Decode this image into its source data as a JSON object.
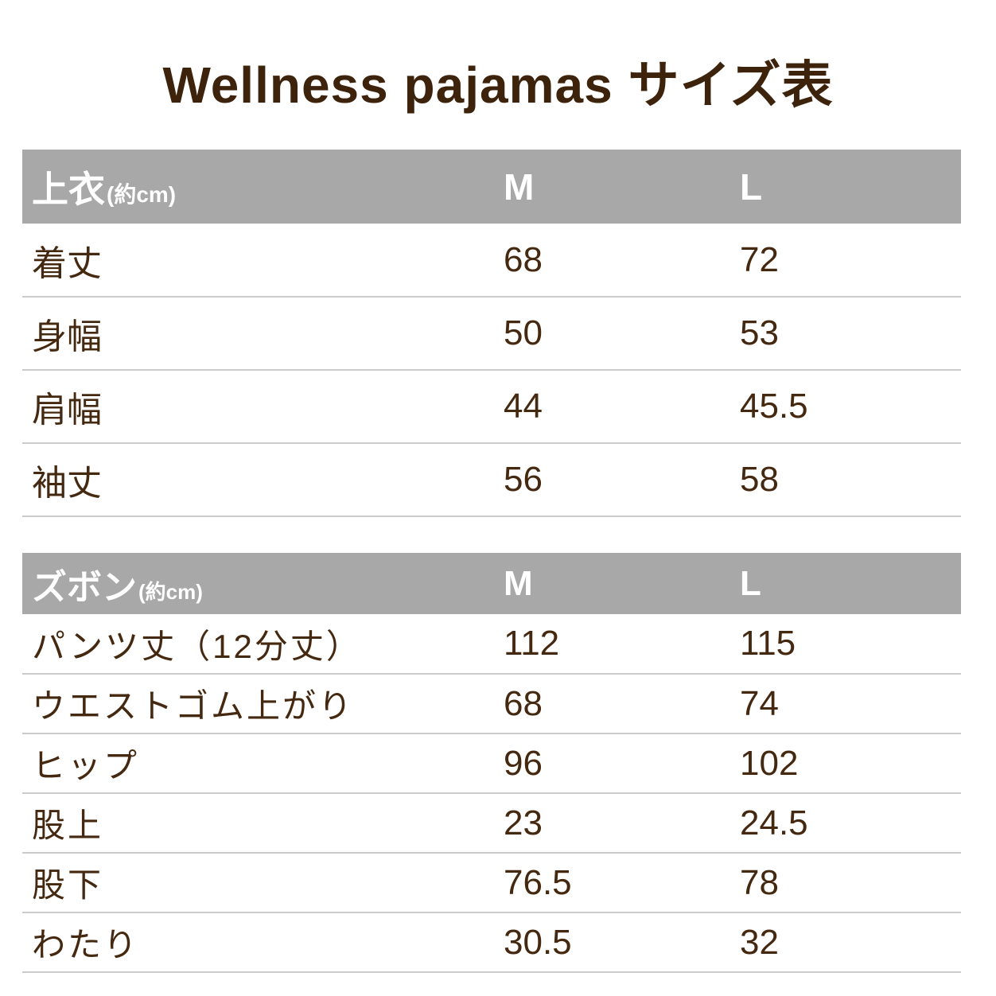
{
  "title": "Wellness pajamas サイズ表",
  "colors": {
    "text_brown": "#44280f",
    "title_brown": "#3e230c",
    "header_background_gray": "#a8a8a8",
    "header_text_white": "#ffffff",
    "row_divider_gray": "#cbcbcb",
    "page_background": "#ffffff"
  },
  "tables": [
    {
      "header": {
        "label": "上衣",
        "unit": "(約cm)",
        "columns": [
          "M",
          "L"
        ]
      },
      "rows": [
        {
          "label": "着丈",
          "m": "68",
          "l": "72"
        },
        {
          "label": "身幅",
          "m": "50",
          "l": "53"
        },
        {
          "label": "肩幅",
          "m": "44",
          "l": "45.5"
        },
        {
          "label": "袖丈",
          "m": "56",
          "l": "58"
        }
      ]
    },
    {
      "header": {
        "label": "ズボン",
        "unit": "(約cm)",
        "columns": [
          "M",
          "L"
        ]
      },
      "rows": [
        {
          "label": "パンツ丈（12分丈）",
          "m": "112",
          "l": "115"
        },
        {
          "label": "ウエストゴム上がり",
          "m": "68",
          "l": "74"
        },
        {
          "label": "ヒップ",
          "m": "96",
          "l": "102"
        },
        {
          "label": "股上",
          "m": "23",
          "l": "24.5"
        },
        {
          "label": "股下",
          "m": "76.5",
          "l": "78"
        },
        {
          "label": "わたり",
          "m": "30.5",
          "l": "32"
        }
      ]
    }
  ]
}
